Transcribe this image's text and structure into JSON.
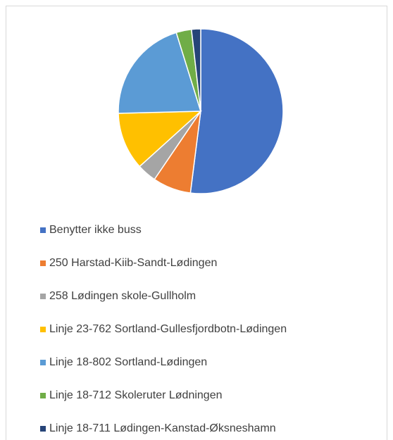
{
  "chart_data": {
    "type": "pie",
    "categories": [
      "Benytter ikke buss",
      "250 Harstad-Kiib-Sandt-Lødingen",
      "258 Lødingen skole-Gullholm",
      "Linje 23-762 Sortland-Gullesfjordbotn-Lødingen",
      "Linje 18-802 Sortland-Lødingen",
      "Linje 18-712 Skoleruter Lødningen",
      "Linje 18-711 Lødingen-Kanstad-Øksneshamn"
    ],
    "values": [
      52,
      7.5,
      3.8,
      11.3,
      20.6,
      3,
      1.8
    ],
    "colors": [
      "#4472c4",
      "#ed7d31",
      "#a5a5a5",
      "#ffc000",
      "#5b9bd5",
      "#70ad47",
      "#264478"
    ],
    "legend": "bottom"
  }
}
